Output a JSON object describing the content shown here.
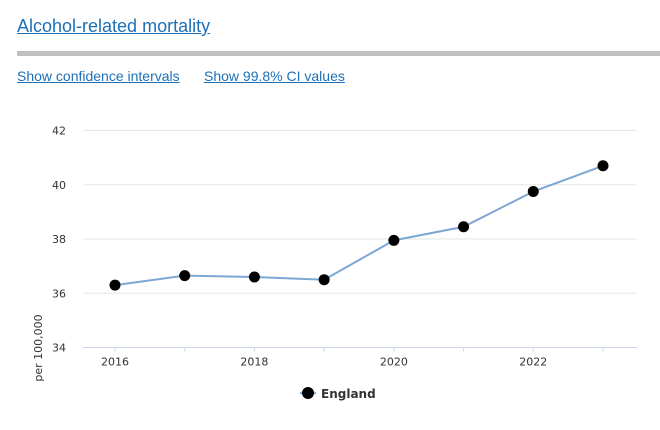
{
  "header": {
    "title": "Alcohol-related mortality",
    "links": [
      "Show confidence intervals",
      "Show 99.8% CI values"
    ]
  },
  "colors": {
    "link": "#1d70b8",
    "line": "#7ba7d4",
    "marker": "#000000",
    "grid": "#e6e6e6",
    "axis": "#ccd6eb",
    "divider": "#bfbfbf"
  },
  "chart_data": {
    "type": "line",
    "title": "",
    "xlabel": "",
    "ylabel": "per 100,000",
    "x": [
      2016,
      2017,
      2018,
      2019,
      2020,
      2021,
      2022,
      2023
    ],
    "series": [
      {
        "name": "England",
        "values": [
          36.3,
          36.65,
          36.6,
          36.5,
          37.95,
          38.45,
          39.75,
          40.7
        ]
      }
    ],
    "ylim": [
      34,
      42
    ],
    "yticks": [
      34,
      36,
      38,
      40,
      42
    ],
    "xtick_labels": [
      "2016",
      "2018",
      "2020",
      "2022"
    ],
    "grid": true,
    "legend": "bottom-center"
  }
}
